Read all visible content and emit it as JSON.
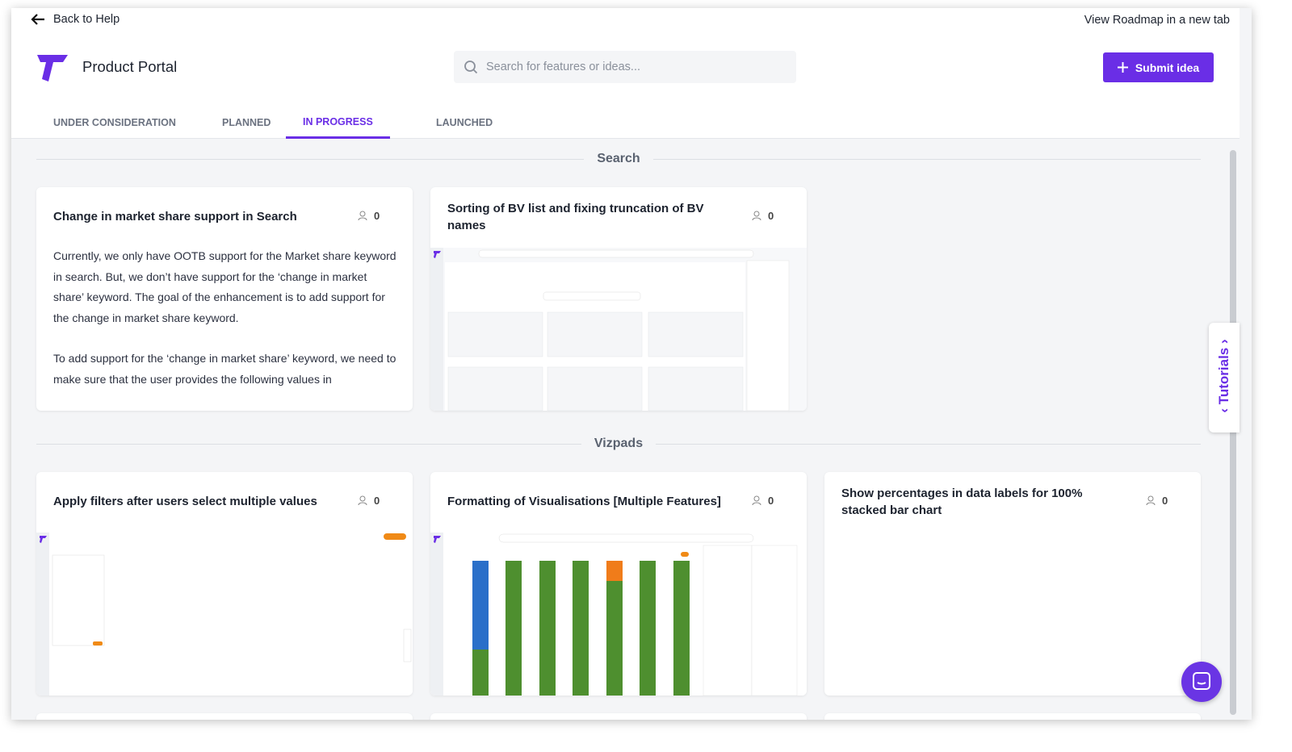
{
  "header": {
    "back": "Back to Help",
    "roadmap_link": "View Roadmap in a new tab",
    "title": "Product Portal",
    "search_placeholder": "Search for features or ideas...",
    "submit": "Submit idea"
  },
  "tabs": [
    {
      "label": "UNDER CONSIDERATION",
      "active": false
    },
    {
      "label": "PLANNED",
      "active": false
    },
    {
      "label": "IN PROGRESS",
      "active": true
    },
    {
      "label": "LAUNCHED",
      "active": false
    }
  ],
  "sections": [
    {
      "title": "Search",
      "cards": [
        {
          "title": "Change in market share support in Search",
          "votes": 0,
          "body": [
            "Currently, we only have OOTB support for the Market share keyword in search. But, we don’t have support for the ‘change in market share’ keyword. The goal of the enhancement is to add support for the change in market share keyword.",
            "To add support for the ‘change in market share’ keyword, we need to make sure that the user provides the following values in"
          ]
        },
        {
          "title": "Sorting of BV list and fixing truncation of BV names",
          "votes": 0
        }
      ]
    },
    {
      "title": "Vizpads",
      "cards": [
        {
          "title": "Apply filters after users select multiple values",
          "votes": 0
        },
        {
          "title": "Formatting of Visualisations [Multiple Features]",
          "votes": 0
        },
        {
          "title": "Show percentages in data labels for 100% stacked bar chart",
          "votes": 0
        }
      ]
    }
  ],
  "tutorials": "Tutorials"
}
